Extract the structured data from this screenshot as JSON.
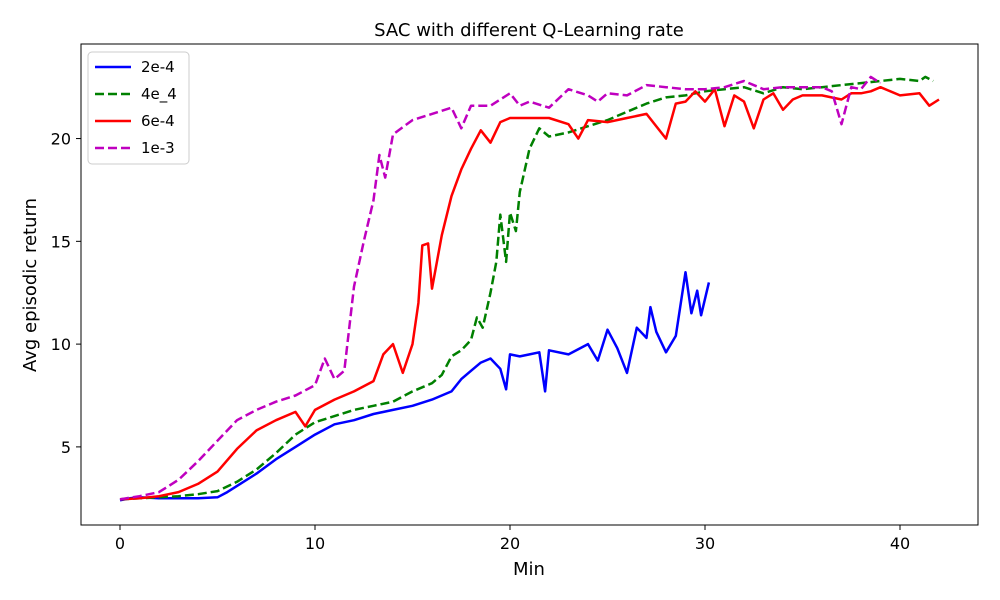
{
  "chart_data": {
    "type": "line",
    "title": "SAC with different Q-Learning rate",
    "xlabel": "Min",
    "ylabel": "Avg episodic return",
    "xlim": [
      -2,
      44
    ],
    "ylim": [
      1.2,
      24.6
    ],
    "xticks": [
      0,
      10,
      20,
      30,
      40
    ],
    "yticks": [
      5,
      10,
      15,
      20
    ],
    "grid": false,
    "legend_position": "top-left",
    "series": [
      {
        "name": "2e-4",
        "color": "#0000ff",
        "dash": "solid",
        "points": [
          [
            0,
            2.4
          ],
          [
            0.5,
            2.5
          ],
          [
            1,
            2.55
          ],
          [
            2,
            2.5
          ],
          [
            3,
            2.5
          ],
          [
            4,
            2.5
          ],
          [
            5,
            2.55
          ],
          [
            5.5,
            2.8
          ],
          [
            6,
            3.1
          ],
          [
            7,
            3.7
          ],
          [
            8,
            4.4
          ],
          [
            9,
            5.0
          ],
          [
            10,
            5.6
          ],
          [
            11,
            6.1
          ],
          [
            12,
            6.3
          ],
          [
            13,
            6.6
          ],
          [
            14,
            6.8
          ],
          [
            15,
            7.0
          ],
          [
            16,
            7.3
          ],
          [
            17,
            7.7
          ],
          [
            17.5,
            8.3
          ],
          [
            18,
            8.7
          ],
          [
            18.5,
            9.1
          ],
          [
            19,
            9.3
          ],
          [
            19.5,
            8.8
          ],
          [
            19.8,
            7.8
          ],
          [
            20,
            9.5
          ],
          [
            20.5,
            9.4
          ],
          [
            21,
            9.5
          ],
          [
            21.5,
            9.6
          ],
          [
            21.8,
            7.7
          ],
          [
            22,
            9.7
          ],
          [
            23,
            9.5
          ],
          [
            24,
            10.0
          ],
          [
            24.5,
            9.2
          ],
          [
            25,
            10.7
          ],
          [
            25.5,
            9.8
          ],
          [
            26,
            8.6
          ],
          [
            26.5,
            10.8
          ],
          [
            27,
            10.3
          ],
          [
            27.2,
            11.8
          ],
          [
            27.5,
            10.6
          ],
          [
            28,
            9.6
          ],
          [
            28.5,
            10.4
          ],
          [
            29,
            13.5
          ],
          [
            29.3,
            11.5
          ],
          [
            29.6,
            12.6
          ],
          [
            29.8,
            11.4
          ],
          [
            30.2,
            13.0
          ]
        ]
      },
      {
        "name": "4e_4",
        "color": "#008000",
        "dash": "dashed",
        "points": [
          [
            0,
            2.45
          ],
          [
            1,
            2.5
          ],
          [
            2,
            2.55
          ],
          [
            3,
            2.6
          ],
          [
            4,
            2.7
          ],
          [
            5,
            2.85
          ],
          [
            6,
            3.3
          ],
          [
            7,
            3.9
          ],
          [
            8,
            4.7
          ],
          [
            9,
            5.6
          ],
          [
            10,
            6.2
          ],
          [
            11,
            6.5
          ],
          [
            12,
            6.8
          ],
          [
            13,
            7.0
          ],
          [
            14,
            7.2
          ],
          [
            15,
            7.7
          ],
          [
            16,
            8.1
          ],
          [
            16.5,
            8.5
          ],
          [
            17,
            9.4
          ],
          [
            17.5,
            9.7
          ],
          [
            18,
            10.2
          ],
          [
            18.3,
            11.3
          ],
          [
            18.6,
            10.8
          ],
          [
            19,
            12.5
          ],
          [
            19.3,
            14.0
          ],
          [
            19.5,
            16.3
          ],
          [
            19.8,
            14.0
          ],
          [
            20,
            16.4
          ],
          [
            20.3,
            15.5
          ],
          [
            20.5,
            17.4
          ],
          [
            21,
            19.5
          ],
          [
            21.5,
            20.5
          ],
          [
            22,
            20.1
          ],
          [
            23,
            20.3
          ],
          [
            24,
            20.6
          ],
          [
            25,
            20.9
          ],
          [
            26,
            21.3
          ],
          [
            27,
            21.7
          ],
          [
            28,
            22.0
          ],
          [
            29,
            22.1
          ],
          [
            30,
            22.3
          ],
          [
            31,
            22.4
          ],
          [
            32,
            22.5
          ],
          [
            33,
            22.2
          ],
          [
            34,
            22.5
          ],
          [
            35,
            22.4
          ],
          [
            36,
            22.5
          ],
          [
            37,
            22.6
          ],
          [
            38,
            22.7
          ],
          [
            39,
            22.8
          ],
          [
            40,
            22.9
          ],
          [
            41,
            22.8
          ],
          [
            41.3,
            23.0
          ],
          [
            41.7,
            22.8
          ]
        ]
      },
      {
        "name": "6e-4",
        "color": "#ff0000",
        "dash": "solid",
        "points": [
          [
            0,
            2.45
          ],
          [
            1,
            2.5
          ],
          [
            2,
            2.6
          ],
          [
            3,
            2.8
          ],
          [
            4,
            3.2
          ],
          [
            5,
            3.8
          ],
          [
            6,
            4.9
          ],
          [
            7,
            5.8
          ],
          [
            8,
            6.3
          ],
          [
            9,
            6.7
          ],
          [
            9.5,
            6.0
          ],
          [
            10,
            6.8
          ],
          [
            11,
            7.3
          ],
          [
            12,
            7.7
          ],
          [
            13,
            8.2
          ],
          [
            13.5,
            9.5
          ],
          [
            14,
            10.0
          ],
          [
            14.5,
            8.6
          ],
          [
            15,
            10.0
          ],
          [
            15.3,
            12.0
          ],
          [
            15.5,
            14.8
          ],
          [
            15.8,
            14.9
          ],
          [
            16,
            12.7
          ],
          [
            16.5,
            15.3
          ],
          [
            17,
            17.2
          ],
          [
            17.5,
            18.5
          ],
          [
            18,
            19.5
          ],
          [
            18.5,
            20.4
          ],
          [
            19,
            19.8
          ],
          [
            19.5,
            20.8
          ],
          [
            20,
            21.0
          ],
          [
            21,
            21.0
          ],
          [
            22,
            21.0
          ],
          [
            23,
            20.7
          ],
          [
            23.5,
            20.0
          ],
          [
            24,
            20.9
          ],
          [
            25,
            20.8
          ],
          [
            26,
            21.0
          ],
          [
            27,
            21.2
          ],
          [
            28,
            20.0
          ],
          [
            28.5,
            21.7
          ],
          [
            29,
            21.8
          ],
          [
            29.5,
            22.3
          ],
          [
            30,
            21.8
          ],
          [
            30.5,
            22.4
          ],
          [
            31,
            20.6
          ],
          [
            31.5,
            22.1
          ],
          [
            32,
            21.8
          ],
          [
            32.5,
            20.5
          ],
          [
            33,
            21.9
          ],
          [
            33.5,
            22.2
          ],
          [
            34,
            21.4
          ],
          [
            34.5,
            21.9
          ],
          [
            35,
            22.1
          ],
          [
            36,
            22.1
          ],
          [
            37,
            21.9
          ],
          [
            37.5,
            22.2
          ],
          [
            38,
            22.2
          ],
          [
            38.5,
            22.3
          ],
          [
            39,
            22.5
          ],
          [
            40,
            22.1
          ],
          [
            41,
            22.2
          ],
          [
            41.5,
            21.6
          ],
          [
            42,
            21.9
          ]
        ]
      },
      {
        "name": "1e-3",
        "color": "#bf00bf",
        "dash": "dashed",
        "points": [
          [
            0,
            2.45
          ],
          [
            1,
            2.6
          ],
          [
            2,
            2.8
          ],
          [
            3,
            3.4
          ],
          [
            4,
            4.3
          ],
          [
            5,
            5.3
          ],
          [
            6,
            6.3
          ],
          [
            7,
            6.8
          ],
          [
            8,
            7.2
          ],
          [
            9,
            7.5
          ],
          [
            10,
            8.0
          ],
          [
            10.5,
            9.3
          ],
          [
            11,
            8.3
          ],
          [
            11.5,
            8.7
          ],
          [
            12,
            12.8
          ],
          [
            12.5,
            15.0
          ],
          [
            13,
            17.0
          ],
          [
            13.3,
            19.2
          ],
          [
            13.6,
            18.1
          ],
          [
            14,
            20.2
          ],
          [
            15,
            20.9
          ],
          [
            16,
            21.2
          ],
          [
            17,
            21.5
          ],
          [
            17.5,
            20.5
          ],
          [
            18,
            21.6
          ],
          [
            19,
            21.6
          ],
          [
            20,
            22.2
          ],
          [
            20.5,
            21.6
          ],
          [
            21,
            21.8
          ],
          [
            22,
            21.5
          ],
          [
            23,
            22.4
          ],
          [
            24,
            22.1
          ],
          [
            24.5,
            21.8
          ],
          [
            25,
            22.2
          ],
          [
            26,
            22.1
          ],
          [
            27,
            22.6
          ],
          [
            28,
            22.5
          ],
          [
            29,
            22.4
          ],
          [
            30,
            22.4
          ],
          [
            31,
            22.5
          ],
          [
            32,
            22.8
          ],
          [
            33,
            22.4
          ],
          [
            34,
            22.5
          ],
          [
            35,
            22.5
          ],
          [
            36,
            22.5
          ],
          [
            36.5,
            22.3
          ],
          [
            37,
            20.7
          ],
          [
            37.5,
            22.5
          ],
          [
            38,
            22.4
          ],
          [
            38.5,
            23.0
          ],
          [
            39,
            22.7
          ]
        ]
      }
    ]
  }
}
